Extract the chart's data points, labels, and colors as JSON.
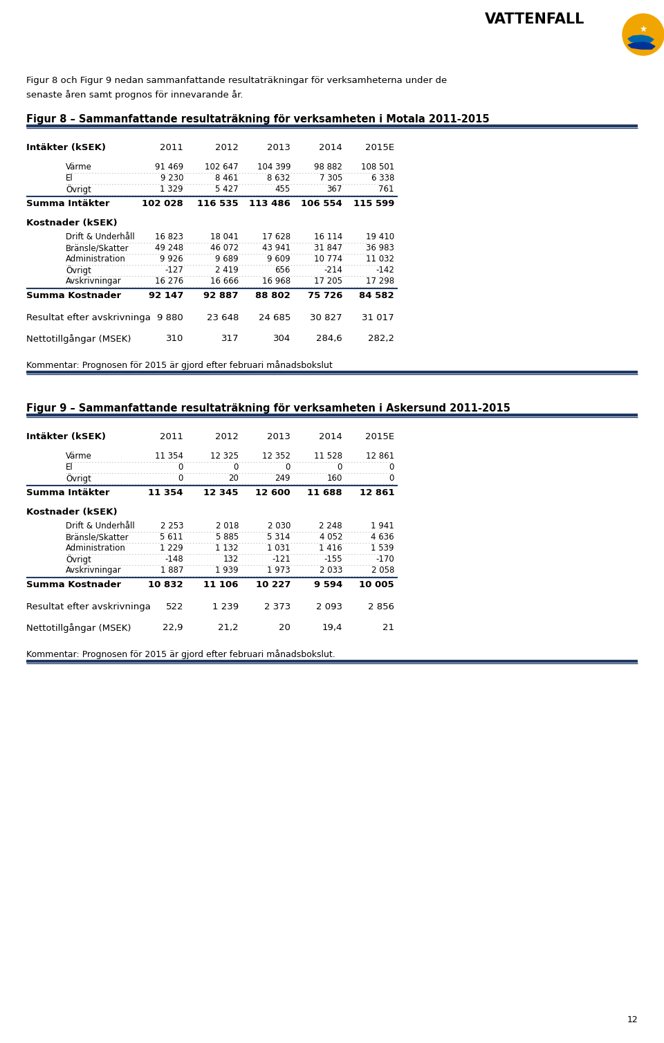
{
  "page_num": "12",
  "intro_text_line1": "Figur 8 och Figur 9 nedan sammanfattande resultaträkningar för verksamheterna under de",
  "intro_text_line2": "senaste åren samt prognos för innevarande år.",
  "fig8_title": "Figur 8 – Sammanfattande resultaträkning för verksamheten i Motala 2011-2015",
  "fig8_header": [
    "Intäkter (kSEK)",
    "2011",
    "2012",
    "2013",
    "2014",
    "2015E"
  ],
  "fig8_intakter_rows": [
    [
      "Värme",
      "91 469",
      "102 647",
      "104 399",
      "98 882",
      "108 501"
    ],
    [
      "El",
      "9 230",
      "8 461",
      "8 632",
      "7 305",
      "6 338"
    ],
    [
      "Övrigt",
      "1 329",
      "5 427",
      "455",
      "367",
      "761"
    ]
  ],
  "fig8_summa_intakter": [
    "Summa Intäkter",
    "102 028",
    "116 535",
    "113 486",
    "106 554",
    "115 599"
  ],
  "fig8_kostnader_header": "Kostnader (kSEK)",
  "fig8_kostnader_rows": [
    [
      "Drift & Underhåll",
      "16 823",
      "18 041",
      "17 628",
      "16 114",
      "19 410"
    ],
    [
      "Bränsle/Skatter",
      "49 248",
      "46 072",
      "43 941",
      "31 847",
      "36 983"
    ],
    [
      "Administration",
      "9 926",
      "9 689",
      "9 609",
      "10 774",
      "11 032"
    ],
    [
      "Övrigt",
      "-127",
      "2 419",
      "656",
      "-214",
      "-142"
    ],
    [
      "Avskrivningar",
      "16 276",
      "16 666",
      "16 968",
      "17 205",
      "17 298"
    ]
  ],
  "fig8_summa_kostnader": [
    "Summa Kostnader",
    "92 147",
    "92 887",
    "88 802",
    "75 726",
    "84 582"
  ],
  "fig8_resultat": [
    "Resultat efter avskrivninga",
    "9 880",
    "23 648",
    "24 685",
    "30 827",
    "31 017"
  ],
  "fig8_netto": [
    "Nettotillgångar (MSEK)",
    "310",
    "317",
    "304",
    "284,6",
    "282,2"
  ],
  "fig8_kommentar": "Kommentar: Prognosen för 2015 är gjord efter februari månadsbokslut",
  "fig9_title": "Figur 9 – Sammanfattande resultaträkning för verksamheten i Askersund 2011-2015",
  "fig9_header": [
    "Intäkter (kSEK)",
    "2011",
    "2012",
    "2013",
    "2014",
    "2015E"
  ],
  "fig9_intakter_rows": [
    [
      "Värme",
      "11 354",
      "12 325",
      "12 352",
      "11 528",
      "12 861"
    ],
    [
      "El",
      "0",
      "0",
      "0",
      "0",
      "0"
    ],
    [
      "Övrigt",
      "0",
      "20",
      "249",
      "160",
      "0"
    ]
  ],
  "fig9_summa_intakter": [
    "Summa Intäkter",
    "11 354",
    "12 345",
    "12 600",
    "11 688",
    "12 861"
  ],
  "fig9_kostnader_header": "Kostnader (kSEK)",
  "fig9_kostnader_rows": [
    [
      "Drift & Underhåll",
      "2 253",
      "2 018",
      "2 030",
      "2 248",
      "1 941"
    ],
    [
      "Bränsle/Skatter",
      "5 611",
      "5 885",
      "5 314",
      "4 052",
      "4 636"
    ],
    [
      "Administration",
      "1 229",
      "1 132",
      "1 031",
      "1 416",
      "1 539"
    ],
    [
      "Övrigt",
      "-148",
      "132",
      "-121",
      "-155",
      "-170"
    ],
    [
      "Avskrivningar",
      "1 887",
      "1 939",
      "1 973",
      "2 033",
      "2 058"
    ]
  ],
  "fig9_summa_kostnader": [
    "Summa Kostnader",
    "10 832",
    "11 106",
    "10 227",
    "9 594",
    "10 005"
  ],
  "fig9_resultat": [
    "Resultat efter avskrivninga",
    "522",
    "1 239",
    "2 373",
    "2 093",
    "2 856"
  ],
  "fig9_netto": [
    "Nettotillgångar (MSEK)",
    "22,9",
    "21,2",
    "20",
    "19,4",
    "21"
  ],
  "fig9_kommentar": "Kommentar: Prognosen för 2015 är gjord efter februari månadsbokslut.",
  "bg_color": "#ffffff",
  "line_color": "#1f3864"
}
